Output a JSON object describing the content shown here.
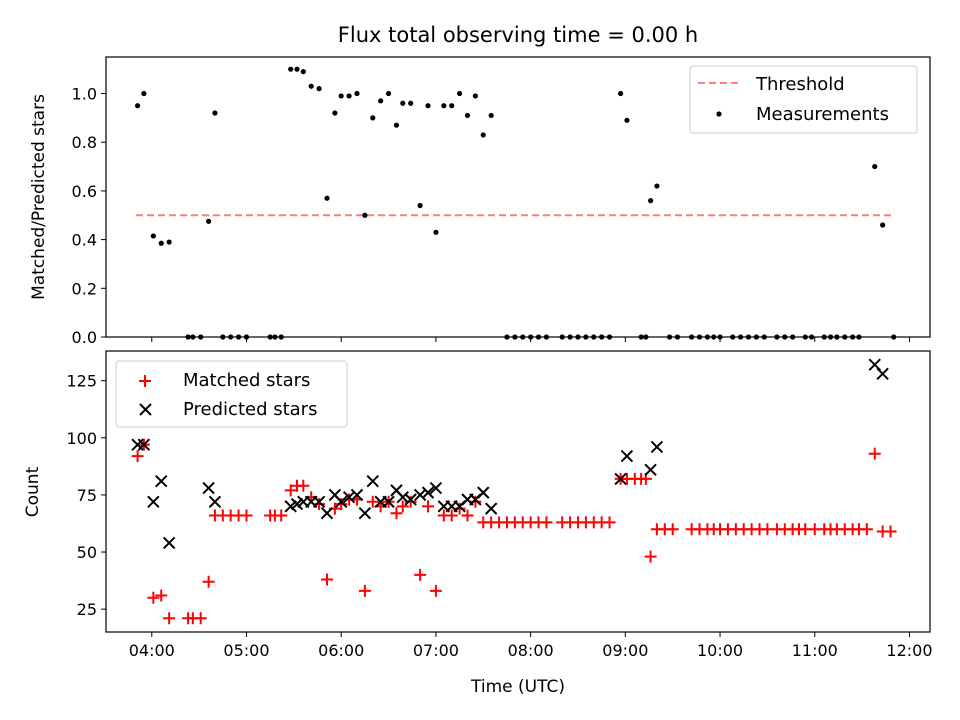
{
  "figure": {
    "title": "Flux total observing time = 0.00 h"
  },
  "chart_data": [
    {
      "type": "scatter",
      "panel": "top",
      "title": "Flux total observing time = 0.00 h",
      "xlabel": "",
      "ylabel": "Matched/Predicted stars",
      "xlim": [
        "03:31",
        "12:13"
      ],
      "ylim": [
        0,
        1.15
      ],
      "x_ticks": [
        "04:00",
        "05:00",
        "06:00",
        "07:00",
        "08:00",
        "09:00",
        "10:00",
        "11:00",
        "12:00"
      ],
      "y_ticks": [
        "0.0",
        "0.2",
        "0.4",
        "0.6",
        "0.8",
        "1.0"
      ],
      "grid": false,
      "legend": {
        "placement": "top-right",
        "entries": [
          "Threshold",
          "Measurements"
        ]
      },
      "threshold": {
        "name": "Threshold",
        "value": 0.5,
        "x_range": [
          "03:50",
          "11:50"
        ],
        "color": "#ff7f7f",
        "style": "dashed"
      },
      "series": [
        {
          "name": "Measurements",
          "color": "#000000",
          "points": [
            [
              "03:51",
              0.95
            ],
            [
              "03:55",
              1.0
            ],
            [
              "04:01",
              0.415
            ],
            [
              "04:06",
              0.385
            ],
            [
              "04:11",
              0.39
            ],
            [
              "04:23",
              0.0
            ],
            [
              "04:26",
              0.0
            ],
            [
              "04:31",
              0.0
            ],
            [
              "04:36",
              0.475
            ],
            [
              "04:40",
              0.92
            ],
            [
              "04:45",
              0.0
            ],
            [
              "04:50",
              0.0
            ],
            [
              "04:55",
              0.0
            ],
            [
              "05:00",
              0.0
            ],
            [
              "05:15",
              0.0
            ],
            [
              "05:18",
              0.0
            ],
            [
              "05:22",
              0.0
            ],
            [
              "05:28",
              1.1
            ],
            [
              "05:32",
              1.1
            ],
            [
              "05:36",
              1.09
            ],
            [
              "05:41",
              1.03
            ],
            [
              "05:46",
              1.02
            ],
            [
              "05:51",
              0.57
            ],
            [
              "05:56",
              0.92
            ],
            [
              "06:00",
              0.99
            ],
            [
              "06:05",
              0.99
            ],
            [
              "06:10",
              1.0
            ],
            [
              "06:15",
              0.5
            ],
            [
              "06:20",
              0.9
            ],
            [
              "06:25",
              0.97
            ],
            [
              "06:30",
              1.0
            ],
            [
              "06:35",
              0.87
            ],
            [
              "06:39",
              0.96
            ],
            [
              "06:44",
              0.96
            ],
            [
              "06:50",
              0.54
            ],
            [
              "06:55",
              0.95
            ],
            [
              "07:00",
              0.43
            ],
            [
              "07:05",
              0.95
            ],
            [
              "07:10",
              0.95
            ],
            [
              "07:15",
              1.0
            ],
            [
              "07:20",
              0.91
            ],
            [
              "07:25",
              0.99
            ],
            [
              "07:30",
              0.83
            ],
            [
              "07:35",
              0.91
            ],
            [
              "07:45",
              0.0
            ],
            [
              "07:50",
              0.0
            ],
            [
              "07:55",
              0.0
            ],
            [
              "08:00",
              0.0
            ],
            [
              "08:05",
              0.0
            ],
            [
              "08:10",
              0.0
            ],
            [
              "08:20",
              0.0
            ],
            [
              "08:25",
              0.0
            ],
            [
              "08:30",
              0.0
            ],
            [
              "08:35",
              0.0
            ],
            [
              "08:40",
              0.0
            ],
            [
              "08:45",
              0.0
            ],
            [
              "08:50",
              0.0
            ],
            [
              "08:57",
              1.0
            ],
            [
              "09:01",
              0.89
            ],
            [
              "09:10",
              0.0
            ],
            [
              "09:13",
              0.0
            ],
            [
              "09:16",
              0.56
            ],
            [
              "09:20",
              0.62
            ],
            [
              "09:28",
              0.0
            ],
            [
              "09:33",
              0.0
            ],
            [
              "09:42",
              0.0
            ],
            [
              "09:47",
              0.0
            ],
            [
              "09:52",
              0.0
            ],
            [
              "09:56",
              0.0
            ],
            [
              "10:00",
              0.0
            ],
            [
              "10:08",
              0.0
            ],
            [
              "10:13",
              0.0
            ],
            [
              "10:18",
              0.0
            ],
            [
              "10:23",
              0.0
            ],
            [
              "10:28",
              0.0
            ],
            [
              "10:36",
              0.0
            ],
            [
              "10:41",
              0.0
            ],
            [
              "10:46",
              0.0
            ],
            [
              "10:54",
              0.0
            ],
            [
              "10:58",
              0.0
            ],
            [
              "11:06",
              0.0
            ],
            [
              "11:10",
              0.0
            ],
            [
              "11:14",
              0.0
            ],
            [
              "11:19",
              0.0
            ],
            [
              "11:24",
              0.0
            ],
            [
              "11:28",
              0.0
            ],
            [
              "11:38",
              0.7
            ],
            [
              "11:43",
              0.46
            ],
            [
              "11:50",
              0.0
            ]
          ]
        }
      ]
    },
    {
      "type": "scatter",
      "panel": "bottom",
      "title": "",
      "xlabel": "Time (UTC)",
      "ylabel": "Count",
      "xlim": [
        "03:31",
        "12:13"
      ],
      "ylim": [
        15,
        138
      ],
      "x_ticks": [
        "04:00",
        "05:00",
        "06:00",
        "07:00",
        "08:00",
        "09:00",
        "10:00",
        "11:00",
        "12:00"
      ],
      "y_ticks": [
        "25",
        "50",
        "75",
        "100",
        "125"
      ],
      "grid": false,
      "legend": {
        "placement": "top-left",
        "entries": [
          "Matched stars",
          "Predicted stars"
        ]
      },
      "series": [
        {
          "name": "Matched stars",
          "marker": "plus",
          "color": "#ff0000",
          "points": [
            [
              "03:51",
              92
            ],
            [
              "03:55",
              97
            ],
            [
              "04:01",
              30
            ],
            [
              "04:06",
              31
            ],
            [
              "04:11",
              21
            ],
            [
              "04:23",
              21
            ],
            [
              "04:26",
              21
            ],
            [
              "04:31",
              21
            ],
            [
              "04:36",
              37
            ],
            [
              "04:40",
              66
            ],
            [
              "04:45",
              66
            ],
            [
              "04:50",
              66
            ],
            [
              "04:55",
              66
            ],
            [
              "05:00",
              66
            ],
            [
              "05:15",
              66
            ],
            [
              "05:18",
              66
            ],
            [
              "05:22",
              66
            ],
            [
              "05:28",
              77
            ],
            [
              "05:32",
              79
            ],
            [
              "05:36",
              79
            ],
            [
              "05:41",
              74
            ],
            [
              "05:46",
              71
            ],
            [
              "05:51",
              38
            ],
            [
              "05:56",
              69
            ],
            [
              "06:00",
              71
            ],
            [
              "06:05",
              73
            ],
            [
              "06:10",
              73
            ],
            [
              "06:15",
              33
            ],
            [
              "06:20",
              72
            ],
            [
              "06:25",
              70
            ],
            [
              "06:30",
              72
            ],
            [
              "06:35",
              67
            ],
            [
              "06:39",
              70
            ],
            [
              "06:44",
              72
            ],
            [
              "06:50",
              40
            ],
            [
              "06:55",
              70
            ],
            [
              "07:00",
              33
            ],
            [
              "07:05",
              66
            ],
            [
              "07:10",
              66
            ],
            [
              "07:15",
              69
            ],
            [
              "07:20",
              66
            ],
            [
              "07:25",
              72
            ],
            [
              "07:30",
              63
            ],
            [
              "07:35",
              63
            ],
            [
              "07:40",
              63
            ],
            [
              "07:45",
              63
            ],
            [
              "07:50",
              63
            ],
            [
              "07:55",
              63
            ],
            [
              "08:00",
              63
            ],
            [
              "08:05",
              63
            ],
            [
              "08:10",
              63
            ],
            [
              "08:20",
              63
            ],
            [
              "08:25",
              63
            ],
            [
              "08:30",
              63
            ],
            [
              "08:35",
              63
            ],
            [
              "08:40",
              63
            ],
            [
              "08:45",
              63
            ],
            [
              "08:50",
              63
            ],
            [
              "08:57",
              82
            ],
            [
              "09:01",
              82
            ],
            [
              "09:06",
              82
            ],
            [
              "09:10",
              82
            ],
            [
              "09:13",
              82
            ],
            [
              "09:16",
              48
            ],
            [
              "09:20",
              60
            ],
            [
              "09:25",
              60
            ],
            [
              "09:30",
              60
            ],
            [
              "09:42",
              60
            ],
            [
              "09:47",
              60
            ],
            [
              "09:52",
              60
            ],
            [
              "09:56",
              60
            ],
            [
              "10:00",
              60
            ],
            [
              "10:05",
              60
            ],
            [
              "10:10",
              60
            ],
            [
              "10:15",
              60
            ],
            [
              "10:20",
              60
            ],
            [
              "10:25",
              60
            ],
            [
              "10:30",
              60
            ],
            [
              "10:36",
              60
            ],
            [
              "10:41",
              60
            ],
            [
              "10:46",
              60
            ],
            [
              "10:50",
              60
            ],
            [
              "10:54",
              60
            ],
            [
              "11:00",
              60
            ],
            [
              "11:06",
              60
            ],
            [
              "11:10",
              60
            ],
            [
              "11:14",
              60
            ],
            [
              "11:19",
              60
            ],
            [
              "11:24",
              60
            ],
            [
              "11:28",
              60
            ],
            [
              "11:33",
              60
            ],
            [
              "11:38",
              93
            ],
            [
              "11:43",
              59
            ],
            [
              "11:48",
              59
            ]
          ]
        },
        {
          "name": "Predicted stars",
          "marker": "x",
          "color": "#000000",
          "points": [
            [
              "03:51",
              97
            ],
            [
              "03:55",
              97
            ],
            [
              "04:01",
              72
            ],
            [
              "04:06",
              81
            ],
            [
              "04:11",
              54
            ],
            [
              "04:36",
              78
            ],
            [
              "04:40",
              72
            ],
            [
              "05:28",
              70
            ],
            [
              "05:32",
              71
            ],
            [
              "05:36",
              72
            ],
            [
              "05:41",
              72
            ],
            [
              "05:46",
              72
            ],
            [
              "05:51",
              67
            ],
            [
              "05:56",
              75
            ],
            [
              "06:00",
              72
            ],
            [
              "06:05",
              74
            ],
            [
              "06:10",
              75
            ],
            [
              "06:15",
              67
            ],
            [
              "06:20",
              81
            ],
            [
              "06:25",
              72
            ],
            [
              "06:30",
              72
            ],
            [
              "06:35",
              77
            ],
            [
              "06:39",
              74
            ],
            [
              "06:44",
              73
            ],
            [
              "06:50",
              75
            ],
            [
              "06:55",
              76
            ],
            [
              "07:00",
              78
            ],
            [
              "07:05",
              70
            ],
            [
              "07:10",
              70
            ],
            [
              "07:15",
              70
            ],
            [
              "07:20",
              73
            ],
            [
              "07:25",
              73
            ],
            [
              "07:30",
              76
            ],
            [
              "07:35",
              69
            ],
            [
              "08:57",
              82
            ],
            [
              "09:01",
              92
            ],
            [
              "09:16",
              86
            ],
            [
              "09:20",
              96
            ],
            [
              "11:38",
              132
            ],
            [
              "11:43",
              128
            ]
          ]
        }
      ]
    }
  ]
}
